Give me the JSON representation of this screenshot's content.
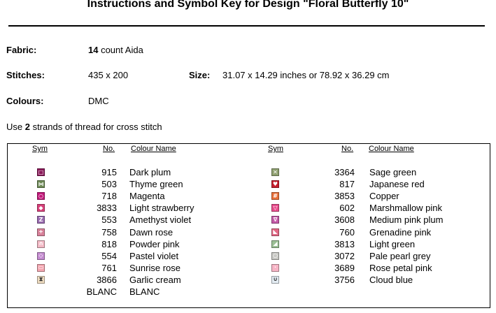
{
  "title": "Instructions and Symbol Key for Design \"Floral Butterfly 10\"",
  "fabric": {
    "label": "Fabric:",
    "count": "14",
    "rest": " count Aida"
  },
  "stitches": {
    "label": "Stitches:",
    "value": "435 x 200"
  },
  "size": {
    "label": "Size:",
    "value": "31.07 x 14.29 inches or 78.92 x 36.29 cm"
  },
  "colours": {
    "label": "Colours:",
    "value": "DMC"
  },
  "instruction": {
    "pre": "Use ",
    "strands": "2",
    "post": " strands of thread for cross stitch"
  },
  "key": {
    "headers": {
      "sym": "Sym",
      "no": "No.",
      "name": "Colour Name"
    },
    "left": [
      {
        "sym": "□",
        "color": "#8B1A5A",
        "no": "915",
        "name": "Dark plum"
      },
      {
        "sym": "⋈",
        "color": "#6E8A56",
        "no": "503",
        "name": "Thyme green"
      },
      {
        "sym": "○",
        "color": "#C2187A",
        "no": "718",
        "name": "Magenta"
      },
      {
        "sym": "◆",
        "color": "#D9407A",
        "no": "3833",
        "name": "Light strawberry"
      },
      {
        "sym": "Z",
        "color": "#9A6BB0",
        "no": "553",
        "name": "Amethyst violet"
      },
      {
        "sym": "+",
        "color": "#D8829A",
        "no": "758",
        "name": "Dawn rose"
      },
      {
        "sym": "∩",
        "color": "#F2B8C4",
        "no": "818",
        "name": "Powder pink"
      },
      {
        "sym": "◇",
        "color": "#C48AD0",
        "no": "554",
        "name": "Pastel violet"
      },
      {
        "sym": "▭",
        "color": "#F4A6B0",
        "no": "761",
        "name": "Sunrise rose"
      },
      {
        "sym": "⧗",
        "color": "#EEDCC0",
        "no": "3866",
        "name": "Garlic cream"
      },
      {
        "sym": "",
        "color": "#FFFFFF",
        "no": "BLANC",
        "name": "BLANC"
      }
    ],
    "right": [
      {
        "sym": "✕",
        "color": "#8FA070",
        "no": "3364",
        "name": "Sage green"
      },
      {
        "sym": "♥",
        "color": "#C61F2E",
        "no": "817",
        "name": "Japanese red"
      },
      {
        "sym": "#",
        "color": "#E8703A",
        "no": "3853",
        "name": "Copper"
      },
      {
        "sym": "▽",
        "color": "#E84C8C",
        "no": "602",
        "name": "Marshmallow pink"
      },
      {
        "sym": "∇",
        "color": "#C45AA8",
        "no": "3608",
        "name": "Medium pink plum"
      },
      {
        "sym": "◣",
        "color": "#E26A86",
        "no": "760",
        "name": "Grenadine pink"
      },
      {
        "sym": "◢",
        "color": "#9CC096",
        "no": "3813",
        "name": "Light green"
      },
      {
        "sym": "○",
        "color": "#C8C8C4",
        "no": "3072",
        "name": "Pale pearl grey"
      },
      {
        "sym": "·",
        "color": "#F7B5C6",
        "no": "3689",
        "name": "Rose petal pink"
      },
      {
        "sym": "∪",
        "color": "#E4EDF4",
        "no": "3756",
        "name": "Cloud blue"
      }
    ]
  }
}
